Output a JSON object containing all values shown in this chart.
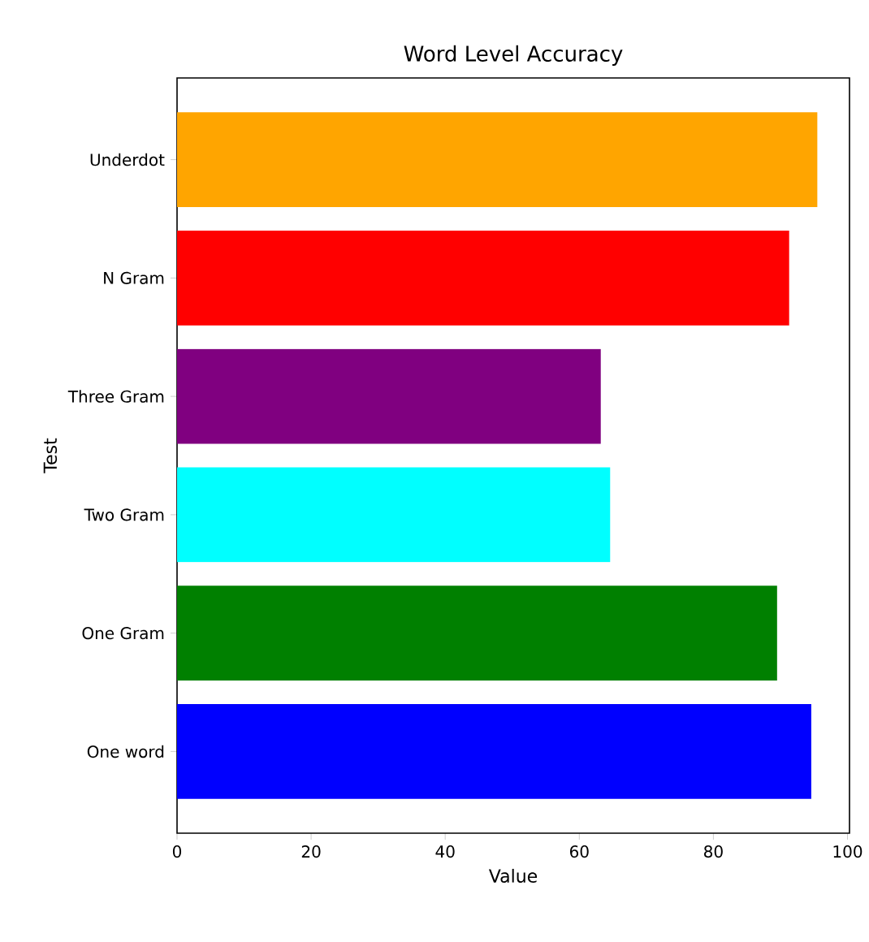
{
  "chart_data": {
    "type": "bar",
    "orientation": "horizontal",
    "title": "Word Level Accuracy",
    "xlabel": "Value",
    "ylabel": "Test",
    "categories": [
      "Underdot",
      "N Gram",
      "Three Gram",
      "Two Gram",
      "One Gram",
      "One word"
    ],
    "values": [
      95.5,
      91.3,
      63.2,
      64.6,
      89.5,
      94.6
    ],
    "colors": [
      "#ffa500",
      "#ff0000",
      "#800080",
      "#00ffff",
      "#008000",
      "#0000ff"
    ],
    "xlim": [
      0,
      100.3
    ],
    "xticks": [
      0,
      20,
      40,
      60,
      80,
      100
    ],
    "grid": false
  }
}
